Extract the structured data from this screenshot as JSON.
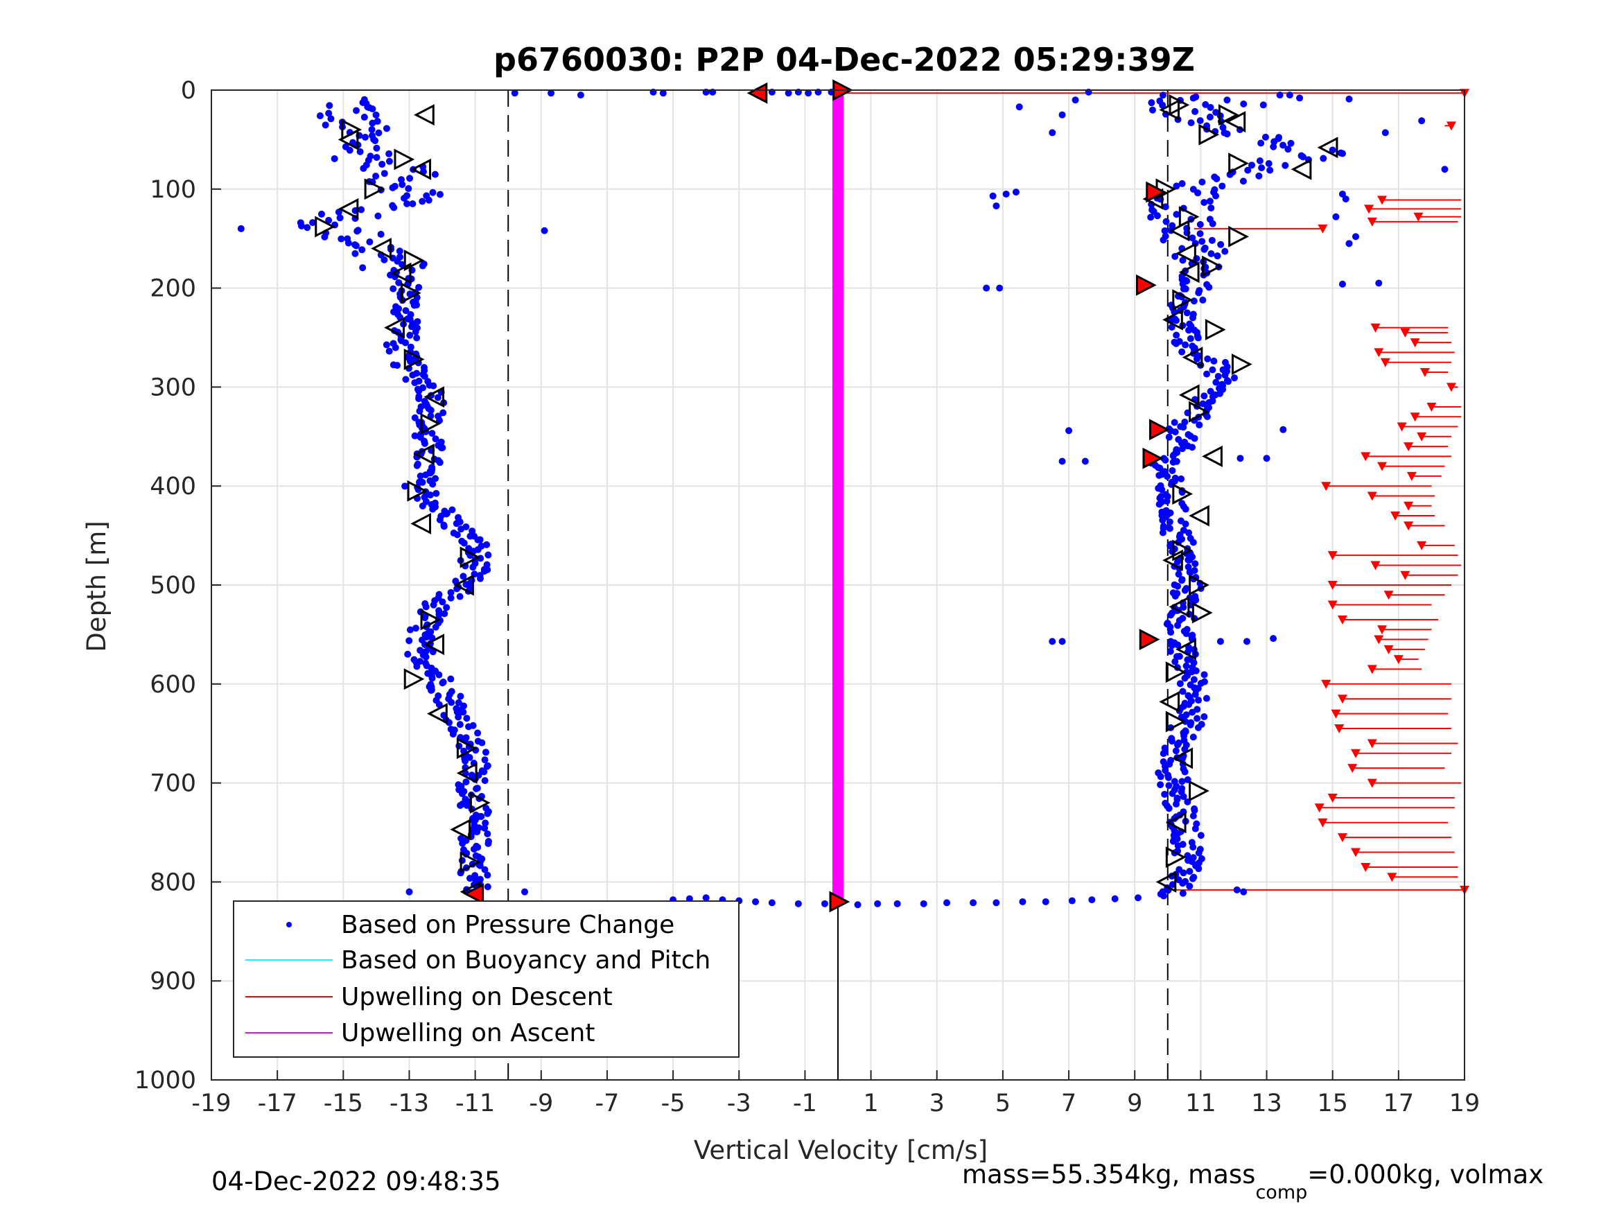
{
  "chart_data": {
    "type": "scatter",
    "title": "p6760030: P2P 04-Dec-2022 05:29:39Z",
    "xlabel": "Vertical Velocity [cm/s]",
    "ylabel": "Depth [m]",
    "xlim": [
      -19,
      19
    ],
    "ylim": [
      0,
      1000
    ],
    "y_reversed": true,
    "grid": true,
    "x_ticks": [
      "-19",
      "-17",
      "-15",
      "-13",
      "-11",
      "-9",
      "-7",
      "-5",
      "-3",
      "-1",
      "1",
      "3",
      "5",
      "7",
      "9",
      "11",
      "13",
      "15",
      "17",
      "19"
    ],
    "y_ticks": [
      "0",
      "100",
      "200",
      "300",
      "400",
      "500",
      "600",
      "700",
      "800",
      "900",
      "1000"
    ],
    "legend_position": "bottom-left",
    "legend": [
      {
        "label": "Based on Pressure Change",
        "color": "#0000ff",
        "marker": "dot"
      },
      {
        "label": "Based on Buoyancy and Pitch",
        "color": "#00ffff",
        "marker": "line"
      },
      {
        "label": "Upwelling on Descent",
        "color": "#ff0000",
        "marker": "line"
      },
      {
        "label": "Upwelling on Ascent",
        "color": "#ff00ff",
        "marker": "line"
      }
    ],
    "colors": {
      "pressure": "#0000ff",
      "descent": "#ff0000",
      "ascent": "#ff00ff",
      "buoyancy": "#00ffff"
    },
    "reference_lines_x": [
      -10,
      10
    ],
    "zero_line_x": 0,
    "series": [
      {
        "name": "Based on Pressure Change",
        "descent_profile_vel": [
          -14.7,
          -14.9,
          -14.5,
          -14.2,
          -13.2,
          -13.4,
          -12.8,
          -12.6,
          -13.4,
          -14.0,
          -14.8,
          -15.3,
          -15.6,
          -14.5,
          -14.0,
          -13.5,
          -13.2,
          -13.0,
          -13.1,
          -13.0,
          -13.3,
          -13.2,
          -12.9,
          -12.4,
          -12.2,
          -12.6,
          -12.4,
          -12.5,
          -12.7,
          -12.2,
          -11.6,
          -11.0,
          -11.0,
          -11.4,
          -12.2,
          -12.5,
          -12.8,
          -12.4,
          -12.0,
          -11.7,
          -11.4,
          -11.2,
          -11.0,
          -11.1,
          -11.0,
          -11.1,
          -11.0,
          -11.0,
          -11.0
        ],
        "descent_profile_depth": [
          15,
          30,
          50,
          70,
          80,
          90,
          100,
          110,
          115,
          120,
          125,
          130,
          135,
          150,
          160,
          175,
          190,
          205,
          220,
          240,
          255,
          270,
          285,
          300,
          320,
          340,
          360,
          380,
          400,
          420,
          440,
          460,
          480,
          500,
          520,
          540,
          560,
          580,
          600,
          620,
          640,
          660,
          680,
          700,
          720,
          740,
          760,
          780,
          800
        ],
        "ascent_profile_vel": [
          10.2,
          10.5,
          11.0,
          12.3,
          13.4,
          14.6,
          13.0,
          11.5,
          10.6,
          10.4,
          10.5,
          10.9,
          10.8,
          10.9,
          10.5,
          10.4,
          10.6,
          11.3,
          11.6,
          11.3,
          11.0,
          10.5,
          10.3,
          9.9,
          10.0,
          10.1,
          10.2,
          10.4,
          10.5,
          10.6,
          10.5,
          10.4,
          10.3,
          10.6,
          10.8,
          10.9,
          10.6,
          10.3,
          10.1,
          10.2,
          10.3,
          10.5,
          10.6,
          10.7,
          10.5,
          10.3,
          10.2,
          10.1
        ],
        "ascent_profile_depth": [
          10,
          20,
          30,
          40,
          55,
          65,
          75,
          90,
          100,
          120,
          140,
          160,
          180,
          200,
          220,
          240,
          260,
          275,
          290,
          305,
          320,
          340,
          360,
          380,
          400,
          420,
          440,
          460,
          480,
          500,
          520,
          540,
          560,
          580,
          600,
          620,
          640,
          660,
          680,
          700,
          720,
          740,
          760,
          780,
          800,
          805,
          810,
          815
        ],
        "surface_x": [
          -9.8,
          -8.7,
          -7.8,
          -5.6,
          -5.3,
          -4.0,
          -3.8,
          -2.4,
          -2.0,
          -1.5,
          -1.2,
          -0.9,
          -0.6,
          -0.2
        ],
        "surface_y": [
          3,
          3,
          5,
          2,
          3,
          2,
          2,
          3,
          2,
          3,
          2,
          3,
          2,
          2
        ],
        "bottom_x": [
          -5.0,
          -4.5,
          -4.0,
          -3.5,
          -3.0,
          -2.5,
          -2.0,
          -1.2,
          -0.4,
          0.6,
          1.2,
          1.8,
          2.6,
          3.3,
          4.1,
          4.8,
          5.6,
          6.3,
          7.1,
          7.7,
          8.4,
          9.1
        ],
        "bottom_y": [
          818,
          817,
          816,
          818,
          819,
          820,
          821,
          822,
          822,
          823,
          822,
          822,
          822,
          821,
          821,
          821,
          820,
          820,
          819,
          818,
          817,
          816
        ],
        "outliers": [
          [
            -18.1,
            140
          ],
          [
            -8.9,
            142
          ],
          [
            -13.0,
            810
          ],
          [
            -9.5,
            810
          ],
          [
            4.7,
            107
          ],
          [
            5.1,
            105
          ],
          [
            4.8,
            117
          ],
          [
            5.4,
            103
          ],
          [
            6.5,
            43
          ],
          [
            6.8,
            25
          ],
          [
            7.2,
            10
          ],
          [
            7.6,
            2
          ],
          [
            5.5,
            17
          ],
          [
            4.5,
            200
          ],
          [
            4.9,
            200
          ],
          [
            7.0,
            344
          ],
          [
            6.8,
            375
          ],
          [
            7.5,
            375
          ],
          [
            6.5,
            557
          ],
          [
            6.8,
            557
          ],
          [
            11.6,
            557
          ],
          [
            12.4,
            557
          ],
          [
            13.2,
            554
          ],
          [
            13.5,
            343
          ],
          [
            12.2,
            372
          ],
          [
            13.0,
            372
          ],
          [
            15.7,
            148
          ],
          [
            15.5,
            155
          ],
          [
            15.3,
            196
          ],
          [
            16.4,
            195
          ],
          [
            17.7,
            31
          ],
          [
            16.6,
            43
          ],
          [
            15.1,
            128
          ],
          [
            15.3,
            105
          ],
          [
            18.4,
            80
          ],
          [
            15.4,
            110
          ],
          [
            11.8,
            10
          ],
          [
            12.3,
            14
          ],
          [
            12.9,
            15
          ],
          [
            13.4,
            5
          ],
          [
            13.7,
            5
          ],
          [
            14.0,
            8
          ],
          [
            15.5,
            9
          ],
          [
            12.1,
            808
          ],
          [
            12.3,
            810
          ]
        ]
      },
      {
        "name": "Upwelling on Descent",
        "depths": [
          3,
          36,
          111,
          120,
          128,
          133,
          140,
          240,
          245,
          255,
          265,
          275,
          285,
          300,
          320,
          330,
          340,
          350,
          360,
          370,
          380,
          390,
          400,
          410,
          420,
          430,
          440,
          460,
          470,
          480,
          490,
          500,
          510,
          520,
          535,
          545,
          555,
          565,
          575,
          585,
          600,
          615,
          630,
          645,
          660,
          670,
          685,
          700,
          715,
          725,
          740,
          755,
          770,
          785,
          795,
          808
        ],
        "starts": [
          0.0,
          18.4,
          18.9,
          18.9,
          18.9,
          18.8,
          10.8,
          18.5,
          18.5,
          18.6,
          18.7,
          18.6,
          18.5,
          18.8,
          18.9,
          18.9,
          18.8,
          18.6,
          18.5,
          18.6,
          18.4,
          18.3,
          18.0,
          18.1,
          18.0,
          18.1,
          18.4,
          18.7,
          18.8,
          18.9,
          18.8,
          18.6,
          18.4,
          18.0,
          18.2,
          18.0,
          17.9,
          17.8,
          17.6,
          17.7,
          18.6,
          18.6,
          18.5,
          18.6,
          18.8,
          18.6,
          18.4,
          18.9,
          18.7,
          18.7,
          18.5,
          18.6,
          18.7,
          18.8,
          18.8,
          9.8
        ],
        "values": [
          19.0,
          18.6,
          16.5,
          16.1,
          17.6,
          16.2,
          14.7,
          16.3,
          17.2,
          17.5,
          16.4,
          16.6,
          17.8,
          18.6,
          18.0,
          17.5,
          17.1,
          17.7,
          17.3,
          16.0,
          16.5,
          17.4,
          14.8,
          16.2,
          17.3,
          16.9,
          17.3,
          17.7,
          15.0,
          16.3,
          17.2,
          15.0,
          16.7,
          15.0,
          15.3,
          16.5,
          16.4,
          16.7,
          17.0,
          16.2,
          14.8,
          15.3,
          15.1,
          15.2,
          16.2,
          15.7,
          15.6,
          16.2,
          15.0,
          14.6,
          14.7,
          15.3,
          15.7,
          16.0,
          16.8,
          19.0
        ]
      },
      {
        "name": "Upwelling on Ascent",
        "x": [
          0.0,
          0.0
        ],
        "depths": [
          0,
          820
        ]
      }
    ],
    "triangle_markers": {
      "descent_open": [
        [
          -12.5,
          25
        ],
        [
          -14.8,
          40
        ],
        [
          -14.8,
          50
        ],
        [
          -13.2,
          70
        ],
        [
          -12.6,
          80
        ],
        [
          -14.1,
          100
        ],
        [
          -14.8,
          120
        ],
        [
          -15.6,
          138
        ],
        [
          -13.8,
          160
        ],
        [
          -12.9,
          172
        ],
        [
          -13.2,
          185
        ],
        [
          -13.0,
          205
        ],
        [
          -13.4,
          240
        ],
        [
          -12.9,
          272
        ],
        [
          -12.2,
          310
        ],
        [
          -12.4,
          337
        ],
        [
          -12.5,
          368
        ],
        [
          -12.8,
          405
        ],
        [
          -12.6,
          438
        ],
        [
          -11.2,
          472
        ],
        [
          -11.3,
          500
        ],
        [
          -12.4,
          535
        ],
        [
          -12.2,
          560
        ],
        [
          -12.9,
          595
        ],
        [
          -12.1,
          630
        ],
        [
          -11.3,
          665
        ],
        [
          -11.2,
          690
        ],
        [
          -10.9,
          720
        ],
        [
          -11.4,
          747
        ],
        [
          -11.2,
          780
        ],
        [
          -11.1,
          810
        ]
      ],
      "descent_red": [
        [
          -11.0,
          812
        ]
      ],
      "ascent_open": [
        [
          10.3,
          15
        ],
        [
          10.1,
          20
        ],
        [
          11.8,
          25
        ],
        [
          12.1,
          32
        ],
        [
          11.2,
          45
        ],
        [
          14.9,
          58
        ],
        [
          12.1,
          74
        ],
        [
          14.1,
          80
        ],
        [
          9.9,
          100
        ],
        [
          9.6,
          110
        ],
        [
          10.6,
          128
        ],
        [
          10.4,
          142
        ],
        [
          12.1,
          148
        ],
        [
          10.6,
          165
        ],
        [
          11.3,
          178
        ],
        [
          10.7,
          184
        ],
        [
          10.4,
          212
        ],
        [
          10.2,
          232
        ],
        [
          11.4,
          242
        ],
        [
          10.8,
          270
        ],
        [
          12.2,
          277
        ],
        [
          10.7,
          308
        ],
        [
          10.9,
          325
        ],
        [
          11.4,
          370
        ],
        [
          10.4,
          408
        ],
        [
          11.0,
          430
        ],
        [
          10.4,
          465
        ],
        [
          10.2,
          475
        ],
        [
          10.9,
          500
        ],
        [
          10.4,
          522
        ],
        [
          11.0,
          528
        ],
        [
          10.6,
          565
        ],
        [
          10.2,
          588
        ],
        [
          10.1,
          618
        ],
        [
          10.2,
          638
        ],
        [
          10.5,
          675
        ],
        [
          10.9,
          708
        ],
        [
          10.3,
          740
        ],
        [
          10.2,
          775
        ],
        [
          10.0,
          800
        ]
      ],
      "ascent_red": [
        [
          9.6,
          103
        ],
        [
          9.3,
          197
        ],
        [
          9.7,
          343
        ],
        [
          9.5,
          372
        ],
        [
          9.4,
          555
        ]
      ],
      "surface_red_left": [
        -2.4,
        3
      ],
      "surface_red_right": [
        0.1,
        0
      ],
      "bottom_red": [
        0.0,
        820
      ]
    }
  },
  "footer": {
    "timestamp": "04-Dec-2022 09:48:35",
    "mass_text": "mass=55.354kg, mass",
    "mass_sub": "comp",
    "mass_text2": "=0.000kg, volmax"
  }
}
